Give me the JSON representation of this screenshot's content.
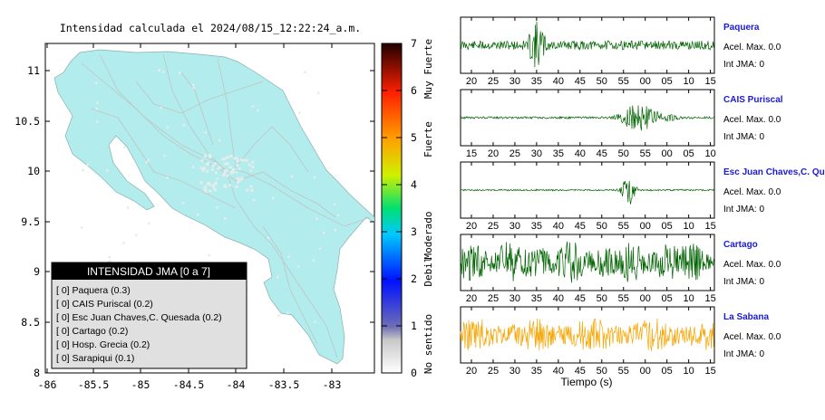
{
  "title": "Intensidad calculada el 2024/08/15_12:22:24_a.m.",
  "map": {
    "x_ticks": [
      "-86",
      "-85.5",
      "-85",
      "-84.5",
      "-84",
      "-83.5",
      "-83"
    ],
    "y_ticks": [
      "11",
      "10.5",
      "10",
      "9.5",
      "9",
      "8.5",
      "8"
    ],
    "land_color": "#b3ecec",
    "legend_title": "INTENSIDAD JMA [0 a 7]",
    "legend_items": [
      "[ 0]  Paquera (0.3)",
      "[ 0]  CAIS Puriscal (0.2)",
      "[ 0]  Esc Juan Chaves,C. Quesada (0.2)",
      "[ 0]  Cartago (0.2)",
      "[ 0]  Hosp. Grecia (0.2)",
      "[ 0]  Sarapiqui (0.1)"
    ]
  },
  "colorbar": {
    "ticks": [
      "7",
      "6",
      "5",
      "4",
      "3",
      "2",
      "1",
      "0"
    ],
    "labels": [
      "Muy Fuerte",
      "Fuerte",
      "Moderado",
      "Debil",
      "No sentido"
    ]
  },
  "xlabel": "Tiempo (s)",
  "stations": [
    {
      "name": "Paquera",
      "acel": "Acel. Max. 0.0",
      "int": "Int JMA: 0",
      "color": "#006400",
      "ticks": [
        "20",
        "25",
        "30",
        "35",
        "40",
        "45",
        "50",
        "55",
        "00",
        "05",
        "10",
        "15"
      ]
    },
    {
      "name": "CAIS Puriscal",
      "acel": "Acel. Max. 0.0",
      "int": "Int JMA: 0",
      "color": "#006400",
      "ticks": [
        "15",
        "20",
        "25",
        "30",
        "35",
        "40",
        "45",
        "50",
        "55",
        "00",
        "05",
        "10"
      ]
    },
    {
      "name": "Esc Juan Chaves,C. Qu",
      "acel": "Acel. Max. 0.0",
      "int": "Int JMA: 0",
      "color": "#006400",
      "ticks": [
        "20",
        "25",
        "30",
        "35",
        "40",
        "45",
        "50",
        "55",
        "00",
        "05",
        "10",
        "15"
      ]
    },
    {
      "name": "Cartago",
      "acel": "Acel. Max. 0.0",
      "int": "Int JMA: 0",
      "color": "#006400",
      "ticks": [
        "20",
        "25",
        "30",
        "35",
        "40",
        "45",
        "50",
        "55",
        "00",
        "05",
        "10",
        "15"
      ]
    },
    {
      "name": "La Sabana",
      "acel": "Acel. Max. 0.0",
      "int": "Int JMA: 0",
      "color": "#f5a500",
      "ticks": [
        "20",
        "25",
        "30",
        "35",
        "40",
        "45",
        "50",
        "55",
        "00",
        "05",
        "10",
        "15"
      ]
    }
  ]
}
